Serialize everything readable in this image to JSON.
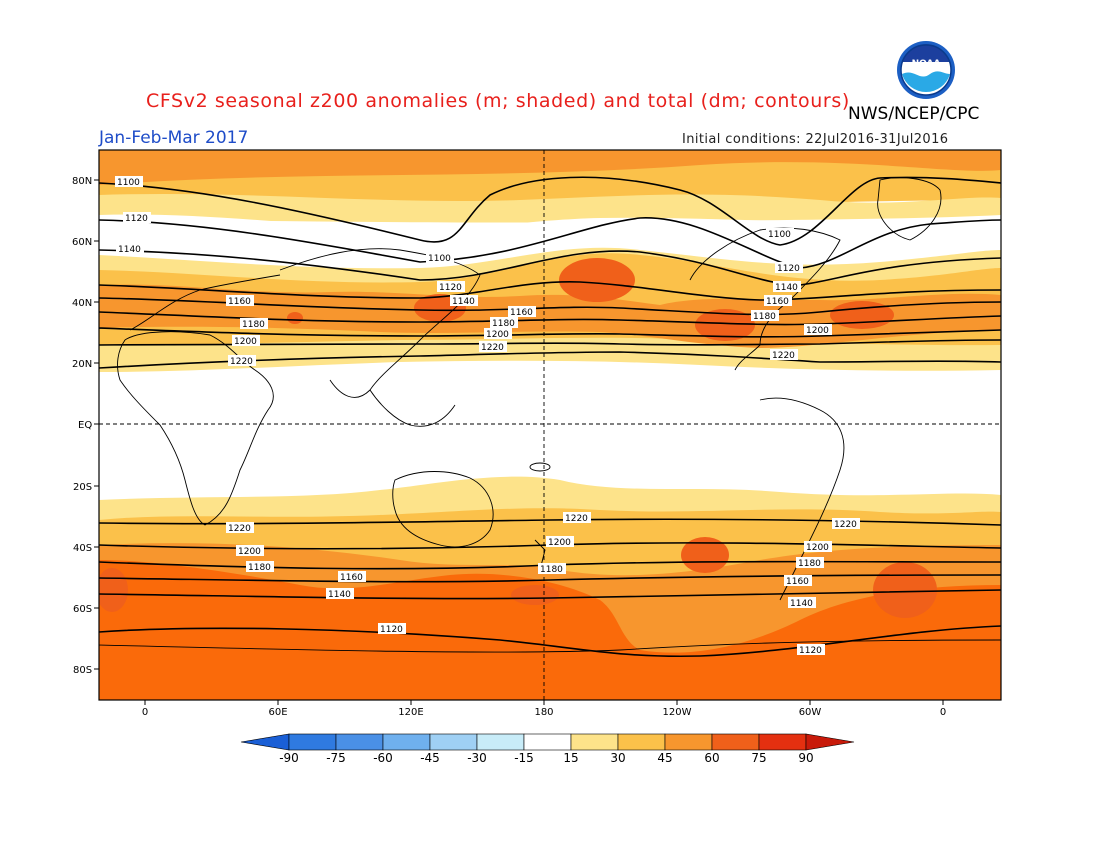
{
  "header": {
    "title": "CFSv2 seasonal z200 anomalies (m; shaded) and total (dm; contours)",
    "agency": "NWS/NCEP/CPC",
    "period": "Jan-Feb-Mar 2017",
    "initial_conditions": "Initial conditions: 22Jul2016-31Jul2016",
    "logo_text": "NOAA"
  },
  "axes": {
    "lat_labels": [
      "80N",
      "60N",
      "40N",
      "20N",
      "EQ",
      "20S",
      "40S",
      "60S",
      "80S"
    ],
    "lon_labels": [
      "0",
      "60E",
      "120E",
      "180",
      "120W",
      "60W",
      "0"
    ]
  },
  "colorbar": {
    "labels": [
      "-90",
      "-75",
      "-60",
      "-45",
      "-30",
      "-15",
      "15",
      "30",
      "45",
      "60",
      "75",
      "90"
    ],
    "colors": [
      "#1a5fd6",
      "#2f7ae0",
      "#4a90e6",
      "#6fb0ee",
      "#9fd0f4",
      "#c8ecf8",
      "#ffffff",
      "#fde38a",
      "#fbc14a",
      "#f7962e",
      "#f0601a",
      "#e43010",
      "#c81a0a"
    ]
  },
  "contours": {
    "labels_north": [
      "1100",
      "1120",
      "1140",
      "1160",
      "1180",
      "1200",
      "1220"
    ],
    "labels_south": [
      "1220",
      "1200",
      "1180",
      "1160",
      "1140",
      "1120"
    ]
  },
  "colors": {
    "title": "#e8201c",
    "period": "#1e4cc8",
    "orange": "#f7962e",
    "deep_orange": "#fa6a0a",
    "red_orange": "#f0601a",
    "light_orange": "#fbc14a",
    "yellow": "#fde38a"
  }
}
